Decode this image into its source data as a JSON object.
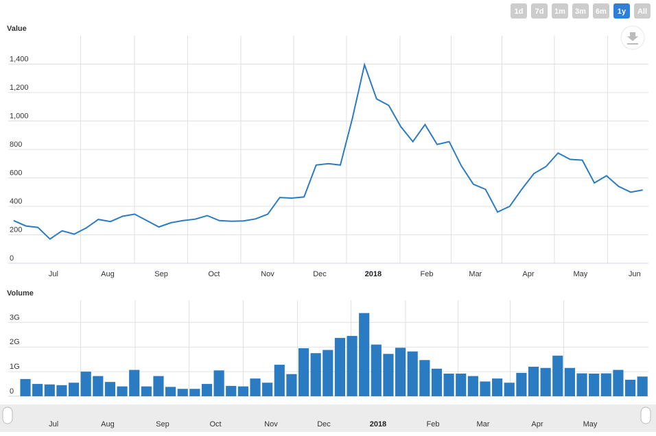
{
  "range_buttons": [
    "1d",
    "7d",
    "1m",
    "3m",
    "6m",
    "1y",
    "All"
  ],
  "selected_button": 5,
  "chart_data": [
    {
      "type": "line",
      "title": "Value",
      "color": "#2a7bc2",
      "values": [
        300,
        262,
        252,
        170,
        228,
        205,
        248,
        308,
        293,
        330,
        345,
        300,
        255,
        285,
        300,
        310,
        335,
        300,
        295,
        298,
        312,
        345,
        462,
        458,
        466,
        690,
        700,
        690,
        1020,
        1395,
        1155,
        1110,
        960,
        855,
        975,
        835,
        855,
        685,
        555,
        520,
        360,
        400,
        520,
        630,
        680,
        775,
        730,
        725,
        565,
        615,
        540,
        500,
        515
      ],
      "xlim": [
        -0.45,
        52.47
      ],
      "xticks": [
        {
          "value": 3.29,
          "label": "Jul"
        },
        {
          "value": 7.77,
          "label": "Aug"
        },
        {
          "value": 12.2,
          "label": "Sep"
        },
        {
          "value": 16.56,
          "label": "Oct"
        },
        {
          "value": 20.99,
          "label": "Nov"
        },
        {
          "value": 25.3,
          "label": "Dec"
        },
        {
          "value": 29.72,
          "label": "2018"
        },
        {
          "value": 34.15,
          "label": "Feb"
        },
        {
          "value": 38.17,
          "label": "Mar"
        },
        {
          "value": 42.54,
          "label": "Apr"
        },
        {
          "value": 46.85,
          "label": "May"
        },
        {
          "value": 51.33,
          "label": "Jun"
        }
      ],
      "ylim": [
        0,
        1600
      ],
      "yticks": [
        0,
        200,
        400,
        600,
        800,
        {
          "value": 1000,
          "label": "1,000"
        },
        {
          "value": 1200,
          "label": "1,200"
        },
        {
          "value": 1400,
          "label": "1,400"
        }
      ],
      "grid": true
    },
    {
      "type": "bar",
      "title": "Volume",
      "color": "#2a7bc2",
      "values": [
        700000000,
        500000000,
        480000000,
        450000000,
        550000000,
        1000000000,
        820000000,
        580000000,
        400000000,
        1070000000,
        400000000,
        820000000,
        380000000,
        300000000,
        300000000,
        500000000,
        1050000000,
        420000000,
        400000000,
        720000000,
        550000000,
        1280000000,
        900000000,
        1950000000,
        1750000000,
        1880000000,
        2370000000,
        2450000000,
        3380000000,
        2100000000,
        1720000000,
        1970000000,
        1820000000,
        1470000000,
        1120000000,
        920000000,
        920000000,
        820000000,
        600000000,
        720000000,
        550000000,
        950000000,
        1200000000,
        1150000000,
        1650000000,
        1150000000,
        930000000,
        920000000,
        930000000,
        1070000000,
        670000000,
        800000000
      ],
      "xlim": [
        -1.42,
        51.5
      ],
      "xticks": [
        {
          "value": 2.33,
          "label": "Jul"
        },
        {
          "value": 6.8,
          "label": "Aug"
        },
        {
          "value": 11.34,
          "label": "Sep"
        },
        {
          "value": 15.71,
          "label": "Oct"
        },
        {
          "value": 20.3,
          "label": "Nov"
        },
        {
          "value": 24.67,
          "label": "Dec"
        },
        {
          "value": 29.15,
          "label": "2018"
        },
        {
          "value": 33.69,
          "label": "Feb"
        },
        {
          "value": 37.83,
          "label": "Mar"
        },
        {
          "value": 42.31,
          "label": "Apr"
        },
        {
          "value": 46.68,
          "label": "May"
        }
      ],
      "ylim": [
        0,
        3900000000
      ],
      "yticks": [
        0,
        {
          "value": 1000000000,
          "label": "1G"
        },
        {
          "value": 2000000000,
          "label": "2G"
        },
        {
          "value": 3000000000,
          "label": "3G"
        }
      ],
      "grid": true
    }
  ]
}
